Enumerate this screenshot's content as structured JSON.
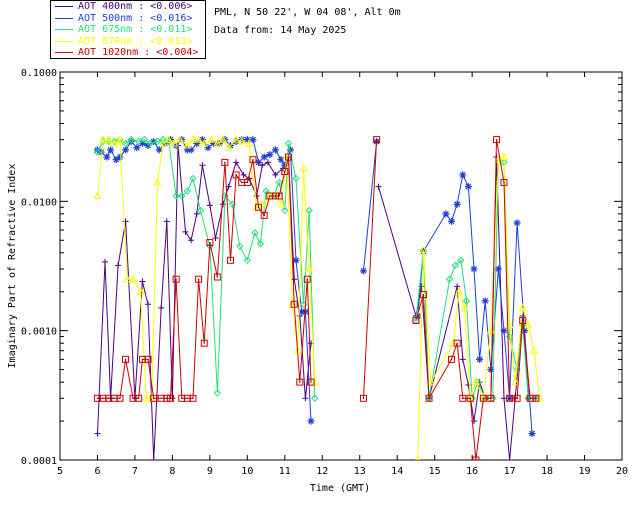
{
  "header": {
    "location": "PML, N 50 22', W 04 08', Alt 0m",
    "date_line": "Data from: 14 May 2025"
  },
  "chart_data": {
    "type": "line",
    "title": "",
    "xlabel": "Time (GMT)",
    "ylabel": "Imaginary Part of Refractive Index",
    "xlim": [
      5,
      20
    ],
    "ylim": [
      0.0001,
      0.1
    ],
    "yscale": "log",
    "xticks": [
      "5",
      "6",
      "7",
      "8",
      "9",
      "10",
      "11",
      "12",
      "13",
      "14",
      "15",
      "16",
      "17",
      "18",
      "19",
      "20"
    ],
    "yticks": [
      "0.0001",
      "0.0010",
      "0.0100",
      "0.1000"
    ],
    "legend_position": "top-left",
    "series": [
      {
        "name": "AOT  400nm : <0.006>",
        "color": "#4b0082",
        "marker": "plus",
        "points": [
          [
            6.0,
            0.00016
          ],
          [
            6.2,
            0.0034
          ],
          [
            6.35,
            0.0003
          ],
          [
            6.55,
            0.0032
          ],
          [
            6.75,
            0.007
          ],
          [
            7.0,
            0.0003
          ],
          [
            7.2,
            0.0024
          ],
          [
            7.35,
            0.0016
          ],
          [
            7.5,
            0.0001
          ],
          [
            7.7,
            0.0015
          ],
          [
            7.85,
            0.007
          ],
          [
            8.0,
            0.0003
          ],
          [
            8.15,
            0.027
          ],
          [
            8.35,
            0.0058
          ],
          [
            8.5,
            0.005
          ],
          [
            8.65,
            0.008
          ],
          [
            8.8,
            0.019
          ],
          [
            9.0,
            0.0093
          ],
          [
            9.15,
            0.0052
          ],
          [
            9.35,
            0.0095
          ],
          [
            9.5,
            0.013
          ],
          [
            9.7,
            0.02
          ],
          [
            9.9,
            0.016
          ],
          [
            10.05,
            0.015
          ],
          [
            10.25,
            0.011
          ],
          [
            10.4,
            0.019
          ],
          [
            10.55,
            0.02
          ],
          [
            10.75,
            0.016
          ],
          [
            10.95,
            0.018
          ],
          [
            11.1,
            0.022
          ],
          [
            11.25,
            0.0025
          ],
          [
            11.4,
            0.0013
          ],
          [
            11.55,
            0.0003
          ],
          [
            11.7,
            0.0008
          ],
          [
            13.5,
            0.013
          ],
          [
            14.5,
            0.0013
          ],
          [
            14.65,
            0.0022
          ],
          [
            14.85,
            0.0003
          ],
          [
            15.6,
            0.0022
          ],
          [
            15.75,
            0.0006
          ],
          [
            15.9,
            0.00038
          ],
          [
            16.05,
            0.0002
          ],
          [
            16.2,
            0.0004
          ],
          [
            16.35,
            0.0003
          ],
          [
            16.5,
            0.0003
          ],
          [
            16.65,
            0.022
          ],
          [
            16.85,
            0.0003
          ],
          [
            17.0,
            0.0001
          ],
          [
            17.15,
            0.0003
          ],
          [
            17.35,
            0.0013
          ],
          [
            17.5,
            0.0003
          ],
          [
            17.7,
            0.0003
          ]
        ]
      },
      {
        "name": "AOT  500nm : <0.016>",
        "color": "#1f3fd6",
        "marker": "star",
        "points": [
          [
            6.0,
            0.025
          ],
          [
            6.1,
            0.024
          ],
          [
            6.25,
            0.022
          ],
          [
            6.35,
            0.025
          ],
          [
            6.5,
            0.021
          ],
          [
            6.6,
            0.022
          ],
          [
            6.75,
            0.025
          ],
          [
            6.9,
            0.029
          ],
          [
            7.05,
            0.026
          ],
          [
            7.2,
            0.028
          ],
          [
            7.35,
            0.027
          ],
          [
            7.5,
            0.029
          ],
          [
            7.65,
            0.025
          ],
          [
            7.8,
            0.028
          ],
          [
            7.95,
            0.03
          ],
          [
            8.1,
            0.027
          ],
          [
            8.25,
            0.03
          ],
          [
            8.4,
            0.025
          ],
          [
            8.5,
            0.025
          ],
          [
            8.65,
            0.028
          ],
          [
            8.8,
            0.03
          ],
          [
            8.95,
            0.026
          ],
          [
            9.1,
            0.028
          ],
          [
            9.25,
            0.028
          ],
          [
            9.4,
            0.03
          ],
          [
            9.55,
            0.027
          ],
          [
            9.7,
            0.029
          ],
          [
            9.85,
            0.03
          ],
          [
            10.0,
            0.03
          ],
          [
            10.15,
            0.03
          ],
          [
            10.3,
            0.02
          ],
          [
            10.45,
            0.022
          ],
          [
            10.6,
            0.023
          ],
          [
            10.75,
            0.025
          ],
          [
            10.9,
            0.021
          ],
          [
            11.0,
            0.019
          ],
          [
            11.15,
            0.025
          ],
          [
            11.3,
            0.0035
          ],
          [
            11.45,
            0.0014
          ],
          [
            11.55,
            0.0014
          ],
          [
            11.7,
            0.0002
          ],
          [
            13.1,
            0.0029
          ],
          [
            13.45,
            0.029
          ],
          [
            14.55,
            0.0013
          ],
          [
            14.7,
            0.0041
          ],
          [
            15.3,
            0.008
          ],
          [
            15.45,
            0.007
          ],
          [
            15.6,
            0.0095
          ],
          [
            15.75,
            0.016
          ],
          [
            15.9,
            0.013
          ],
          [
            16.05,
            0.003
          ],
          [
            16.2,
            0.0006
          ],
          [
            16.35,
            0.0017
          ],
          [
            16.5,
            0.0005
          ],
          [
            16.7,
            0.003
          ],
          [
            16.85,
            0.001
          ],
          [
            17.0,
            0.0003
          ],
          [
            17.2,
            0.0068
          ],
          [
            17.4,
            0.001
          ],
          [
            17.6,
            0.00016
          ]
        ]
      },
      {
        "name": "AOT  675nm : <0.011>",
        "color": "#22e07a",
        "marker": "diamond",
        "points": [
          [
            6.0,
            0.024
          ],
          [
            6.15,
            0.029
          ],
          [
            6.3,
            0.029
          ],
          [
            6.45,
            0.029
          ],
          [
            6.6,
            0.03
          ],
          [
            6.75,
            0.028
          ],
          [
            6.9,
            0.03
          ],
          [
            7.1,
            0.029
          ],
          [
            7.25,
            0.03
          ],
          [
            7.4,
            0.028
          ],
          [
            7.6,
            0.029
          ],
          [
            7.75,
            0.03
          ],
          [
            7.9,
            0.029
          ],
          [
            8.1,
            0.011
          ],
          [
            8.25,
            0.011
          ],
          [
            8.4,
            0.012
          ],
          [
            8.55,
            0.015
          ],
          [
            8.75,
            0.0085
          ],
          [
            9.0,
            0.0045
          ],
          [
            9.2,
            0.00033
          ],
          [
            9.4,
            0.011
          ],
          [
            9.6,
            0.0095
          ],
          [
            9.8,
            0.0045
          ],
          [
            10.0,
            0.0035
          ],
          [
            10.2,
            0.0057
          ],
          [
            10.35,
            0.0047
          ],
          [
            10.5,
            0.012
          ],
          [
            10.7,
            0.011
          ],
          [
            10.85,
            0.014
          ],
          [
            11.0,
            0.0085
          ],
          [
            11.1,
            0.028
          ],
          [
            11.3,
            0.015
          ],
          [
            11.5,
            0.0016
          ],
          [
            11.65,
            0.0085
          ],
          [
            11.8,
            0.0003
          ],
          [
            14.5,
            0.0012
          ],
          [
            14.7,
            0.0042
          ],
          [
            14.85,
            0.0003
          ],
          [
            15.4,
            0.0025
          ],
          [
            15.55,
            0.0032
          ],
          [
            15.7,
            0.0035
          ],
          [
            15.85,
            0.0017
          ],
          [
            16.0,
            0.0003
          ],
          [
            16.15,
            0.0004
          ],
          [
            16.35,
            0.0003
          ],
          [
            16.55,
            0.0003
          ],
          [
            16.7,
            0.021
          ],
          [
            16.85,
            0.02
          ],
          [
            17.0,
            0.0009
          ],
          [
            17.2,
            0.0005
          ],
          [
            17.35,
            0.0011
          ],
          [
            17.5,
            0.0003
          ],
          [
            17.7,
            0.0003
          ]
        ]
      },
      {
        "name": "AOT  870nm : <0.013>",
        "color": "#ffff00",
        "marker": "triangle",
        "points": [
          [
            6.0,
            0.011
          ],
          [
            6.15,
            0.03
          ],
          [
            6.3,
            0.03
          ],
          [
            6.45,
            0.028
          ],
          [
            6.6,
            0.03
          ],
          [
            6.8,
            0.0025
          ],
          [
            6.95,
            0.0025
          ],
          [
            7.15,
            0.002
          ],
          [
            7.3,
            0.0003
          ],
          [
            7.45,
            0.0003
          ],
          [
            7.6,
            0.014
          ],
          [
            7.75,
            0.028
          ],
          [
            7.9,
            0.03
          ],
          [
            8.05,
            0.028
          ],
          [
            8.2,
            0.03
          ],
          [
            8.4,
            0.027
          ],
          [
            8.55,
            0.03
          ],
          [
            8.7,
            0.03
          ],
          [
            8.85,
            0.028
          ],
          [
            9.05,
            0.03
          ],
          [
            9.2,
            0.028
          ],
          [
            9.35,
            0.03
          ],
          [
            9.5,
            0.026
          ],
          [
            9.7,
            0.03
          ],
          [
            9.85,
            0.029
          ],
          [
            10.05,
            0.028
          ],
          [
            10.25,
            0.009
          ],
          [
            10.4,
            0.0095
          ],
          [
            10.6,
            0.011
          ],
          [
            10.75,
            0.011
          ],
          [
            10.9,
            0.0095
          ],
          [
            11.05,
            0.022
          ],
          [
            11.2,
            0.0016
          ],
          [
            11.35,
            0.0007
          ],
          [
            11.5,
            0.018
          ],
          [
            11.65,
            0.003
          ],
          [
            11.8,
            0.0004
          ],
          [
            14.55,
            0.0001
          ],
          [
            14.7,
            0.0042
          ],
          [
            14.9,
            0.0004
          ],
          [
            15.5,
            0.0008
          ],
          [
            15.65,
            0.002
          ],
          [
            15.8,
            0.0015
          ],
          [
            15.95,
            0.0003
          ],
          [
            16.1,
            0.0004
          ],
          [
            16.3,
            0.0003
          ],
          [
            16.5,
            0.001
          ],
          [
            16.7,
            0.021
          ],
          [
            16.85,
            0.022
          ],
          [
            17.0,
            0.0011
          ],
          [
            17.15,
            0.0004
          ],
          [
            17.35,
            0.0015
          ],
          [
            17.5,
            0.0011
          ],
          [
            17.65,
            0.0007
          ],
          [
            17.8,
            0.0003
          ]
        ]
      },
      {
        "name": "AOT 1020nm : <0.004>",
        "color": "#d10000",
        "marker": "square",
        "points": [
          [
            6.0,
            0.0003
          ],
          [
            6.15,
            0.0003
          ],
          [
            6.3,
            0.0003
          ],
          [
            6.45,
            0.0003
          ],
          [
            6.6,
            0.0003
          ],
          [
            6.75,
            0.0006
          ],
          [
            6.95,
            0.0003
          ],
          [
            7.1,
            0.0003
          ],
          [
            7.2,
            0.0006
          ],
          [
            7.35,
            0.0006
          ],
          [
            7.5,
            0.0003
          ],
          [
            7.7,
            0.0003
          ],
          [
            7.85,
            0.0003
          ],
          [
            7.95,
            0.0003
          ],
          [
            8.1,
            0.0025
          ],
          [
            8.25,
            0.0003
          ],
          [
            8.4,
            0.0003
          ],
          [
            8.55,
            0.0003
          ],
          [
            8.7,
            0.0025
          ],
          [
            8.85,
            0.0008
          ],
          [
            9.0,
            0.0048
          ],
          [
            9.2,
            0.0026
          ],
          [
            9.4,
            0.02
          ],
          [
            9.55,
            0.0035
          ],
          [
            9.7,
            0.016
          ],
          [
            9.85,
            0.014
          ],
          [
            10.0,
            0.014
          ],
          [
            10.15,
            0.021
          ],
          [
            10.3,
            0.009
          ],
          [
            10.45,
            0.0078
          ],
          [
            10.6,
            0.011
          ],
          [
            10.75,
            0.011
          ],
          [
            10.85,
            0.011
          ],
          [
            11.0,
            0.017
          ],
          [
            11.1,
            0.022
          ],
          [
            11.25,
            0.0016
          ],
          [
            11.4,
            0.0004
          ],
          [
            11.6,
            0.0025
          ],
          [
            11.7,
            0.0004
          ],
          [
            13.1,
            0.0003
          ],
          [
            13.45,
            0.03
          ],
          [
            14.5,
            0.0012
          ],
          [
            14.7,
            0.0019
          ],
          [
            14.85,
            0.0003
          ],
          [
            15.45,
            0.0006
          ],
          [
            15.6,
            0.0008
          ],
          [
            15.75,
            0.0003
          ],
          [
            15.95,
            0.0003
          ],
          [
            16.1,
            0.0001
          ],
          [
            16.3,
            0.0003
          ],
          [
            16.5,
            0.0003
          ],
          [
            16.65,
            0.03
          ],
          [
            16.85,
            0.014
          ],
          [
            17.0,
            0.0003
          ],
          [
            17.2,
            0.0003
          ],
          [
            17.35,
            0.0012
          ],
          [
            17.55,
            0.0003
          ],
          [
            17.7,
            0.0003
          ]
        ]
      }
    ]
  }
}
